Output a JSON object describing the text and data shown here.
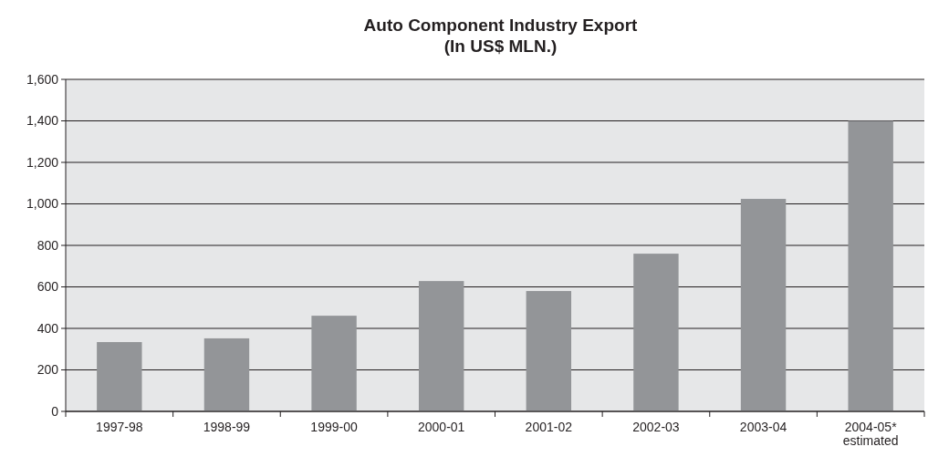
{
  "chart_data": {
    "type": "bar",
    "title": "Auto Component Industry Export\n(In US$ MLN.)",
    "categories": [
      "1997-98",
      "1998-99",
      "1999-00",
      "2000-01",
      "2001-02",
      "2002-03",
      "2003-04",
      "2004-05*\nestimated"
    ],
    "values": [
      334,
      352,
      461,
      628,
      580,
      760,
      1024,
      1400
    ],
    "color": "#939598",
    "ylim": [
      0,
      1600
    ],
    "yticks": [
      0,
      200,
      400,
      600,
      800,
      {
        "value": 1000,
        "label": "1,000"
      },
      {
        "value": 1200,
        "label": "1,200"
      },
      {
        "value": 1400,
        "label": "1,400"
      },
      {
        "value": 1600,
        "label": "1,600"
      }
    ],
    "grid": "y"
  }
}
